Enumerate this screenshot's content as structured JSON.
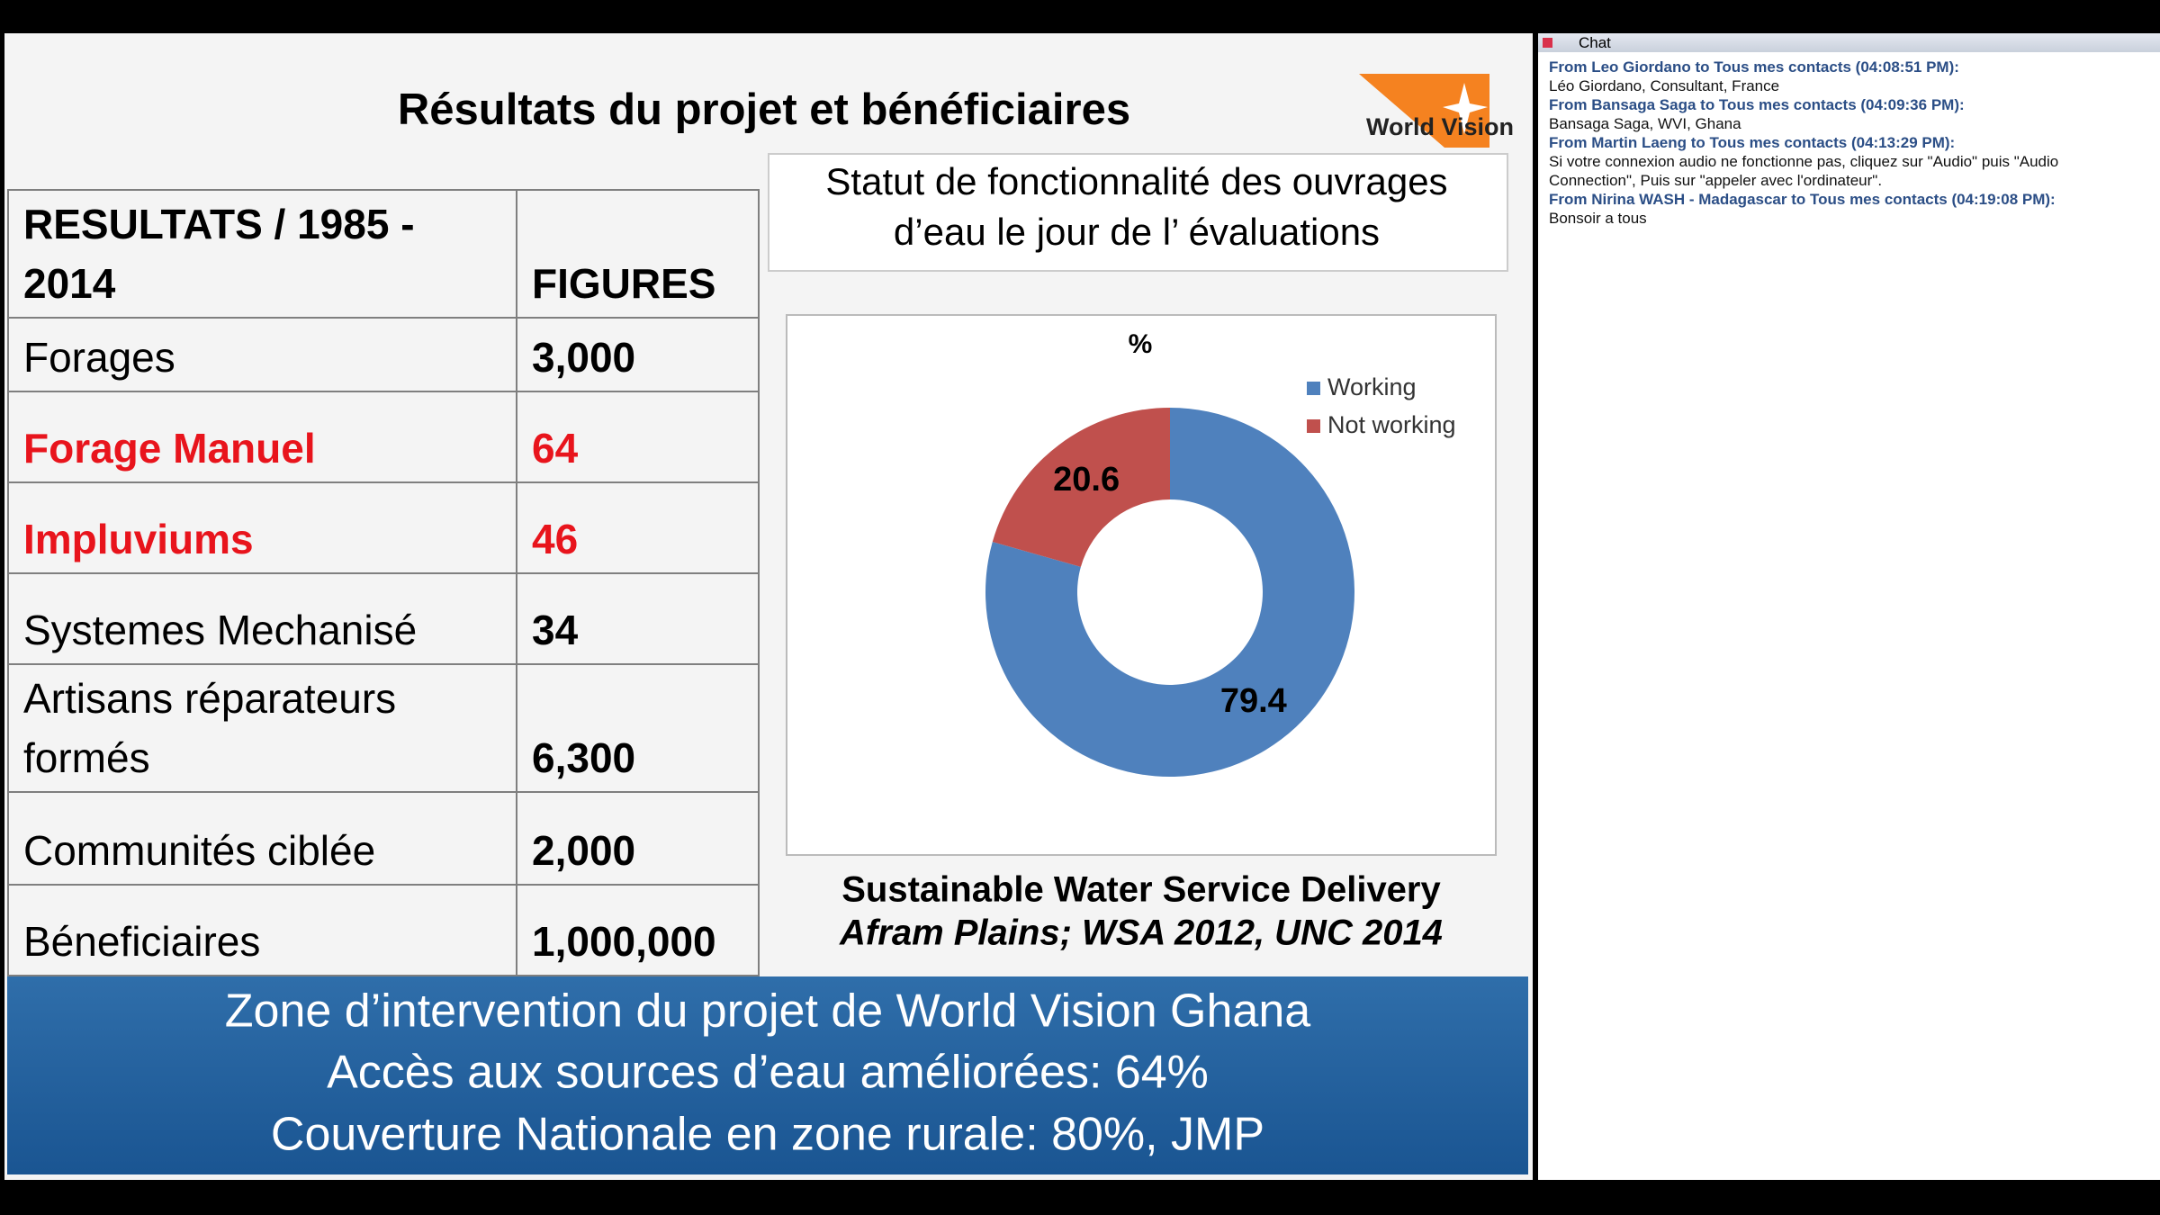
{
  "slide": {
    "title": "Résultats du projet et bénéficiaires",
    "logo": "World Vision",
    "table": {
      "header": [
        "RESULTATS / 1985 - 2014",
        "FIGURES"
      ],
      "rows": [
        [
          "Forages",
          "3,000"
        ],
        [
          "Forage Manuel",
          "64"
        ],
        [
          "Impluviums",
          "46"
        ],
        [
          "Systemes Mechanisé",
          "34"
        ],
        [
          "Artisans réparateurs formés",
          "6,300"
        ],
        [
          "Communités ciblée",
          "2,000"
        ],
        [
          "Béneficiaires",
          "1,000,000"
        ]
      ]
    },
    "heading": [
      "Statut de fonctionnalité des ouvrages",
      "d’eau le jour de l’ évaluations"
    ],
    "chart": {
      "type": "pie",
      "title": "%",
      "categories": [
        "Working",
        "Not working"
      ],
      "values": [
        79.4,
        20.6
      ],
      "colors": [
        "#4f81bd",
        "#c0504d"
      ]
    },
    "caption": [
      "Sustainable Water Service Delivery",
      "Afram Plains; WSA 2012, UNC 2014"
    ],
    "banner": [
      "Zone d’intervention du projet de World Vision Ghana",
      "Accès aux sources d’eau améliorées: 64%",
      "Couverture Nationale en zone rurale: 80%, JMP"
    ]
  },
  "chat": {
    "title": "Chat",
    "messages": [
      {
        "from": "From Leo Giordano to Tous mes contacts (04:08:51 PM):",
        "text": "Léo Giordano, Consultant, France"
      },
      {
        "from": "From Bansaga Saga to Tous mes contacts (04:09:36 PM):",
        "text": "Bansaga Saga, WVI, Ghana"
      },
      {
        "from": "From Martin Laeng to Tous mes contacts (04:13:29 PM):",
        "text": "Si votre connexion audio ne fonctionne pas, cliquez sur \"Audio\" puis \"Audio Connection\", Puis sur \"appeler avec l'ordinateur\"."
      },
      {
        "from": "From Nirina WASH - Madagascar to Tous mes contacts (04:19:08 PM):",
        "text": "Bonsoir a tous"
      }
    ]
  }
}
